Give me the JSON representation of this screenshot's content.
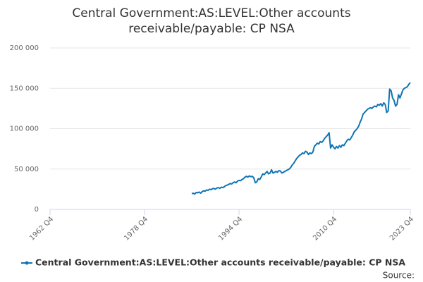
{
  "chart_data": {
    "type": "line",
    "title": "Central Government:AS:LEVEL:Other accounts receivable/payable: CP NSA",
    "x": [
      "1986 Q4",
      "1987 Q1",
      "1987 Q2",
      "1987 Q3",
      "1987 Q4",
      "1988 Q1",
      "1988 Q2",
      "1988 Q3",
      "1988 Q4",
      "1989 Q1",
      "1989 Q2",
      "1989 Q3",
      "1989 Q4",
      "1990 Q1",
      "1990 Q2",
      "1990 Q3",
      "1990 Q4",
      "1991 Q1",
      "1991 Q2",
      "1991 Q3",
      "1991 Q4",
      "1992 Q1",
      "1992 Q2",
      "1992 Q3",
      "1992 Q4",
      "1993 Q1",
      "1993 Q2",
      "1993 Q3",
      "1993 Q4",
      "1994 Q1",
      "1994 Q2",
      "1994 Q3",
      "1994 Q4",
      "1995 Q1",
      "1995 Q2",
      "1995 Q3",
      "1995 Q4",
      "1996 Q1",
      "1996 Q2",
      "1996 Q3",
      "1996 Q4",
      "1997 Q1",
      "1997 Q2",
      "1997 Q3",
      "1997 Q4",
      "1998 Q1",
      "1998 Q2",
      "1998 Q3",
      "1998 Q4",
      "1999 Q1",
      "1999 Q2",
      "1999 Q3",
      "1999 Q4",
      "2000 Q1",
      "2000 Q2",
      "2000 Q3",
      "2000 Q4",
      "2001 Q1",
      "2001 Q2",
      "2001 Q3",
      "2001 Q4",
      "2002 Q1",
      "2002 Q2",
      "2002 Q3",
      "2002 Q4",
      "2003 Q1",
      "2003 Q2",
      "2003 Q3",
      "2003 Q4",
      "2004 Q1",
      "2004 Q2",
      "2004 Q3",
      "2004 Q4",
      "2005 Q1",
      "2005 Q2",
      "2005 Q3",
      "2005 Q4",
      "2006 Q1",
      "2006 Q2",
      "2006 Q3",
      "2006 Q4",
      "2007 Q1",
      "2007 Q2",
      "2007 Q3",
      "2007 Q4",
      "2008 Q1",
      "2008 Q2",
      "2008 Q3",
      "2008 Q4",
      "2009 Q1",
      "2009 Q2",
      "2009 Q3",
      "2009 Q4",
      "2010 Q1",
      "2010 Q2",
      "2010 Q3",
      "2010 Q4",
      "2011 Q1",
      "2011 Q2",
      "2011 Q3",
      "2011 Q4",
      "2012 Q1",
      "2012 Q2",
      "2012 Q3",
      "2012 Q4",
      "2013 Q1",
      "2013 Q2",
      "2013 Q3",
      "2013 Q4",
      "2014 Q1",
      "2014 Q2",
      "2014 Q3",
      "2014 Q4",
      "2015 Q1",
      "2015 Q2",
      "2015 Q3",
      "2015 Q4",
      "2016 Q1",
      "2016 Q2",
      "2016 Q3",
      "2016 Q4",
      "2017 Q1",
      "2017 Q2",
      "2017 Q3",
      "2017 Q4",
      "2018 Q1",
      "2018 Q2",
      "2018 Q3",
      "2018 Q4",
      "2019 Q1",
      "2019 Q2",
      "2019 Q3",
      "2019 Q4",
      "2020 Q1",
      "2020 Q2",
      "2020 Q3",
      "2020 Q4",
      "2021 Q1",
      "2021 Q2",
      "2021 Q3",
      "2021 Q4",
      "2022 Q1",
      "2022 Q2",
      "2022 Q3",
      "2022 Q4",
      "2023 Q1",
      "2023 Q2",
      "2023 Q3",
      "2023 Q4"
    ],
    "series": [
      {
        "name": "Central Government:AS:LEVEL:Other accounts receivable/payable: CP NSA",
        "color": "#0f75b3",
        "values": [
          19500,
          20000,
          19000,
          21000,
          20500,
          21500,
          20000,
          22000,
          23000,
          22500,
          24000,
          23500,
          25000,
          24500,
          25500,
          26000,
          25000,
          26500,
          27000,
          26000,
          27500,
          27000,
          28000,
          29500,
          30000,
          31000,
          32000,
          31500,
          33000,
          34000,
          33000,
          35000,
          36000,
          35500,
          37000,
          38000,
          40000,
          41000,
          40000,
          41500,
          40500,
          41000,
          39000,
          33000,
          34000,
          38000,
          37000,
          40000,
          44000,
          43000,
          45000,
          47000,
          44000,
          45000,
          49000,
          45000,
          46000,
          47000,
          46000,
          48000,
          47500,
          45000,
          46000,
          47000,
          48000,
          49000,
          50000,
          52000,
          55000,
          57000,
          60000,
          63000,
          65000,
          67000,
          68000,
          70000,
          69000,
          72000,
          71000,
          68000,
          70000,
          69000,
          71000,
          78000,
          80000,
          82000,
          81000,
          84000,
          83000,
          85000,
          88000,
          90000,
          92000,
          95000,
          76000,
          80000,
          77000,
          75000,
          78000,
          76000,
          79000,
          77000,
          80000,
          79000,
          82000,
          85000,
          87000,
          86000,
          89000,
          92000,
          96000,
          98000,
          100000,
          103000,
          108000,
          112000,
          118000,
          120000,
          122000,
          124000,
          125000,
          126000,
          125000,
          127000,
          128000,
          127000,
          130000,
          129000,
          131000,
          128000,
          132000,
          130000,
          120000,
          122000,
          149000,
          147000,
          138000,
          135000,
          128000,
          130000,
          142000,
          138000,
          143000,
          148000,
          150000,
          151000,
          152000,
          155000,
          157000
        ]
      }
    ],
    "xlim": [
      "1962 Q4",
      "2023 Q4"
    ],
    "xticks": [
      "1962 Q4",
      "1978 Q4",
      "1994 Q4",
      "2010 Q4",
      "2023 Q4"
    ],
    "ylim": [
      0,
      200000
    ],
    "yticks": [
      0,
      {
        "value": 50000,
        "label": "50 000"
      },
      {
        "value": 100000,
        "label": "100 000"
      },
      {
        "value": 150000,
        "label": "150 000"
      },
      {
        "value": 200000,
        "label": "200 000"
      }
    ],
    "grid": true,
    "source": "Source:"
  }
}
